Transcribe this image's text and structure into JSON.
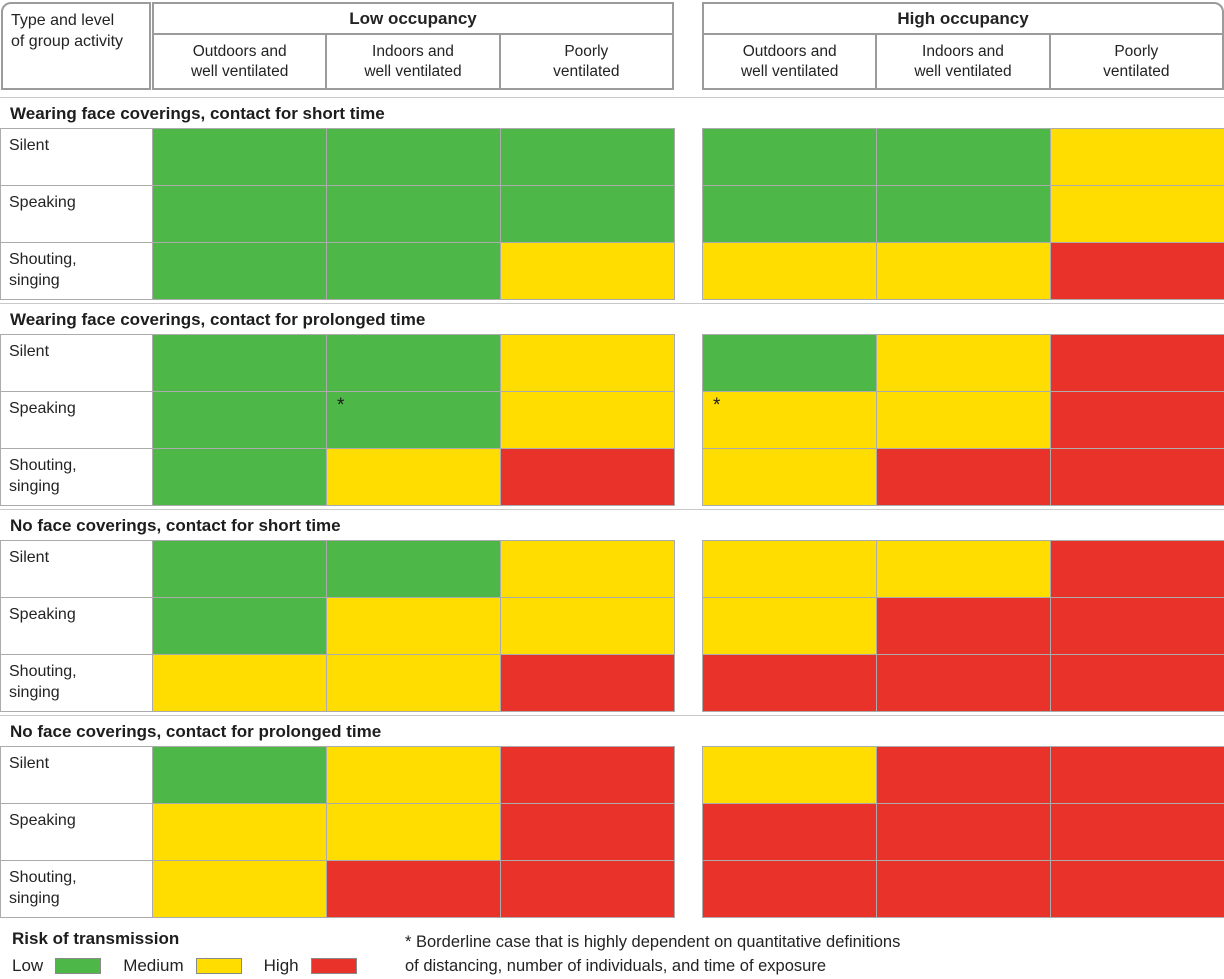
{
  "chart_data": {
    "type": "heatmap",
    "corner_label": "Type and level\nof group activity",
    "column_groups": [
      "Low occupancy",
      "High occupancy"
    ],
    "columns": [
      "Outdoors and\nwell ventilated",
      "Indoors and\nwell ventilated",
      "Poorly\nventilated"
    ],
    "risk_colors": {
      "low": "#4DB748",
      "medium": "#FFDD00",
      "high": "#E93229"
    },
    "footnote_marker": "*",
    "sections": [
      {
        "title": "Wearing face coverings, contact for short time",
        "rows": [
          {
            "label": "Silent",
            "cells": [
              "low",
              "low",
              "low",
              "low",
              "low",
              "medium"
            ]
          },
          {
            "label": "Speaking",
            "cells": [
              "low",
              "low",
              "low",
              "low",
              "low",
              "medium"
            ]
          },
          {
            "label": "Shouting,\nsinging",
            "cells": [
              "low",
              "low",
              "medium",
              "medium",
              "medium",
              "high"
            ]
          }
        ]
      },
      {
        "title": "Wearing face coverings, contact for prolonged time",
        "rows": [
          {
            "label": "Silent",
            "cells": [
              "low",
              "low",
              "medium",
              "low",
              "medium",
              "high"
            ]
          },
          {
            "label": "Speaking",
            "cells": [
              "low",
              "low*",
              "medium",
              "medium*",
              "medium",
              "high"
            ]
          },
          {
            "label": "Shouting,\nsinging",
            "cells": [
              "low",
              "medium",
              "high",
              "medium",
              "high",
              "high"
            ]
          }
        ]
      },
      {
        "title": "No face coverings, contact for short time",
        "rows": [
          {
            "label": "Silent",
            "cells": [
              "low",
              "low",
              "medium",
              "medium",
              "medium",
              "high"
            ]
          },
          {
            "label": "Speaking",
            "cells": [
              "low",
              "medium",
              "medium",
              "medium",
              "high",
              "high"
            ]
          },
          {
            "label": "Shouting,\nsinging",
            "cells": [
              "medium",
              "medium",
              "high",
              "high",
              "high",
              "high"
            ]
          }
        ]
      },
      {
        "title": "No face coverings, contact for prolonged time",
        "rows": [
          {
            "label": "Silent",
            "cells": [
              "low",
              "medium",
              "high",
              "medium",
              "high",
              "high"
            ]
          },
          {
            "label": "Speaking",
            "cells": [
              "medium",
              "medium",
              "high",
              "high",
              "high",
              "high"
            ]
          },
          {
            "label": "Shouting,\nsinging",
            "cells": [
              "medium",
              "high",
              "high",
              "high",
              "high",
              "high"
            ]
          }
        ]
      }
    ],
    "legend": {
      "title": "Risk of transmission",
      "items": [
        {
          "label": "Low",
          "level": "low"
        },
        {
          "label": "Medium",
          "level": "medium"
        },
        {
          "label": "High",
          "level": "high"
        }
      ]
    },
    "footnote": "* Borderline case that is highly dependent on quantitative definitions\nof distancing, number of individuals, and time of exposure"
  }
}
